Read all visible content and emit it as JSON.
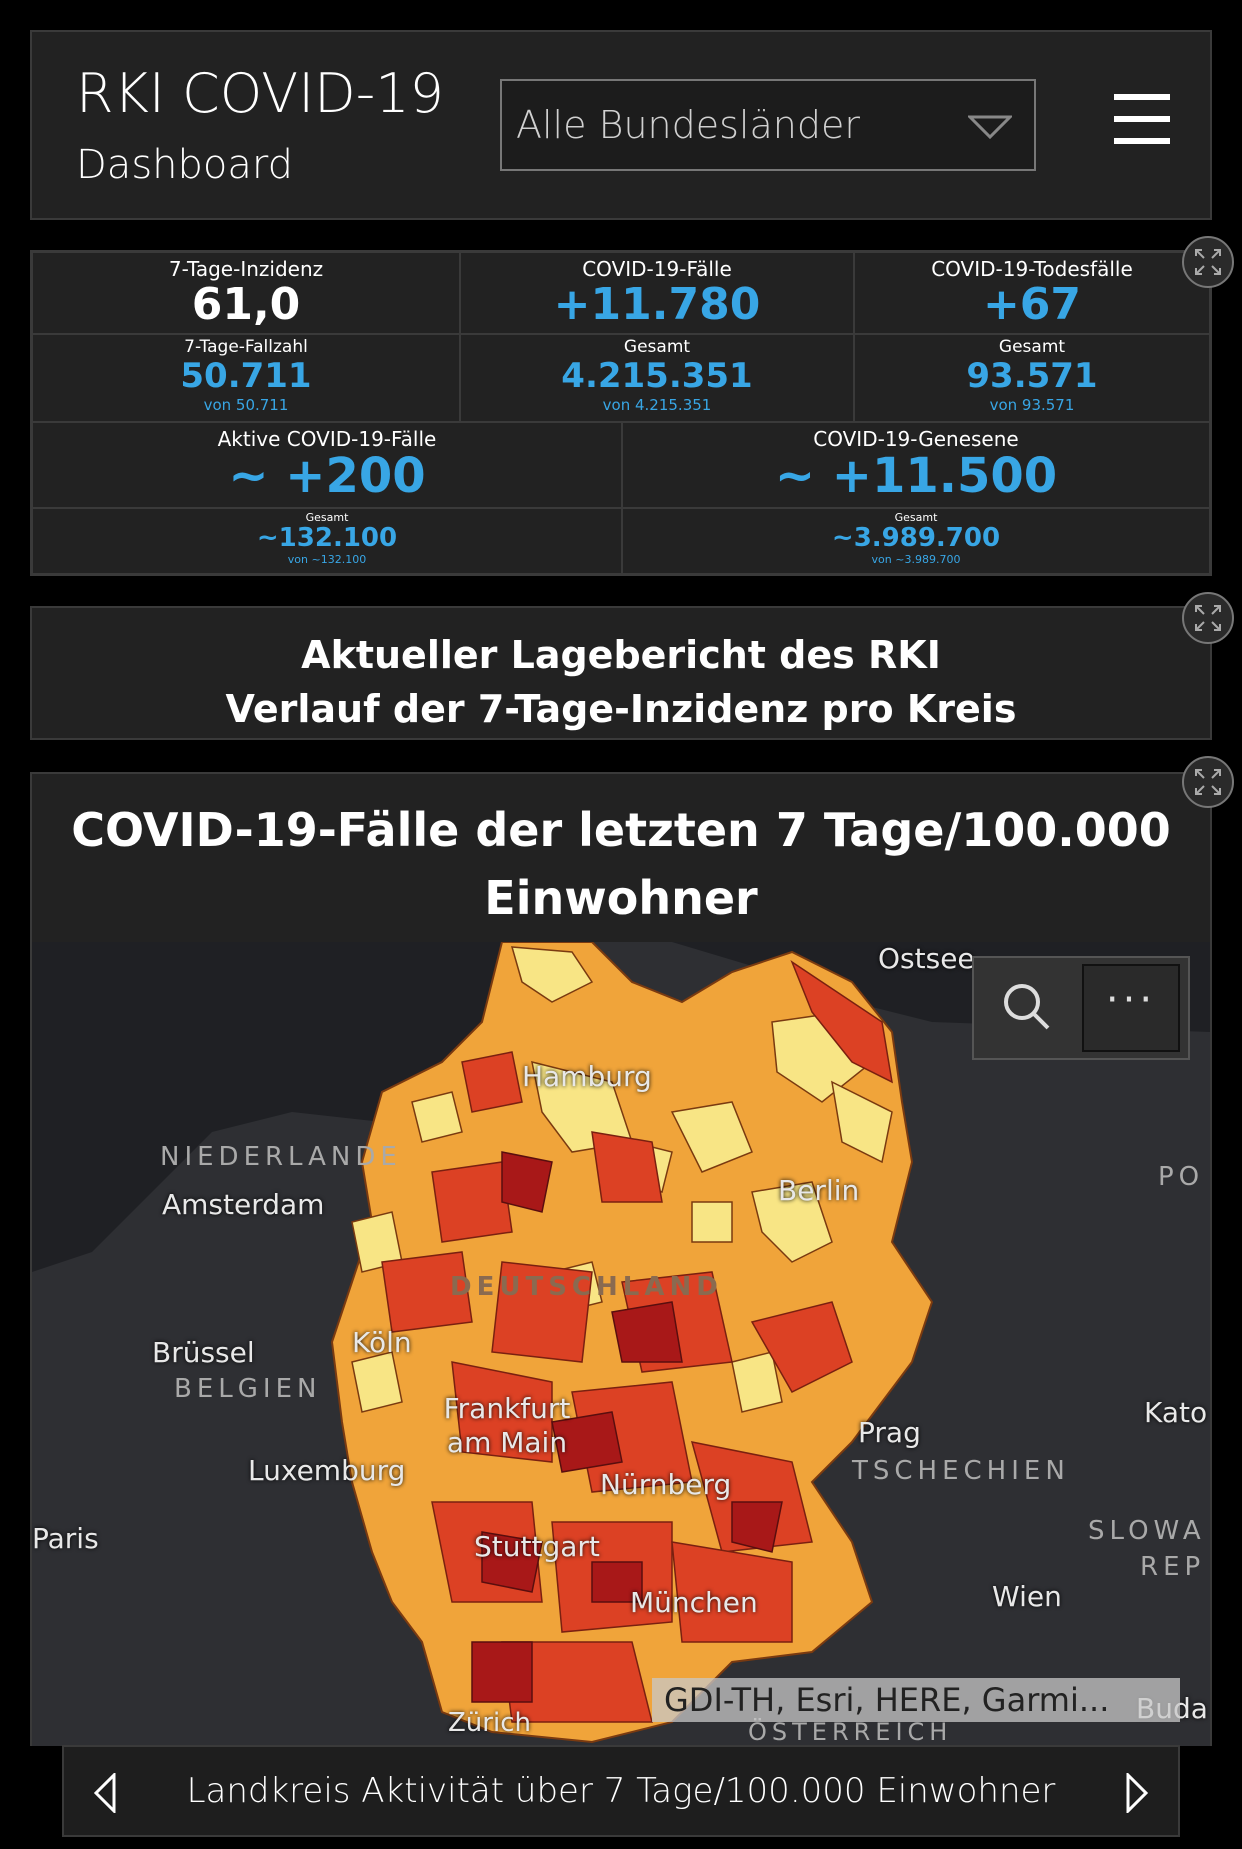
{
  "header": {
    "title": "RKI COVID-19",
    "subtitle": "Dashboard",
    "region_select": "Alle Bundesländer"
  },
  "stats": {
    "incidence": {
      "label": "7-Tage-Inzidenz",
      "value": "61,0"
    },
    "cases": {
      "label": "COVID-19-Fälle",
      "value": "+11.780"
    },
    "deaths": {
      "label": "COVID-19-Todesfälle",
      "value": "+67"
    },
    "case_count_7d": {
      "label": "7-Tage-Fallzahl",
      "value": "50.711",
      "sub": "von 50.711"
    },
    "cases_total": {
      "label": "Gesamt",
      "value": "4.215.351",
      "sub": "von 4.215.351"
    },
    "deaths_total": {
      "label": "Gesamt",
      "value": "93.571",
      "sub": "von 93.571"
    },
    "active": {
      "label": "Aktive COVID-19-Fälle",
      "value": "~ +200"
    },
    "recovered": {
      "label": "COVID-19-Genesene",
      "value": "~ +11.500"
    },
    "active_total": {
      "label": "Gesamt",
      "value": "~132.100",
      "sub": "von ~132.100"
    },
    "recovered_total": {
      "label": "Gesamt",
      "value": "~3.989.700",
      "sub": "von ~3.989.700"
    }
  },
  "report": {
    "line1": "Aktueller Lagebericht des RKI",
    "line2": "Verlauf der 7-Tage-Inzidenz pro Kreis"
  },
  "map": {
    "title": "COVID-19-Fälle der letzten 7 Tage/100.000 Einwohner",
    "cities": [
      "Hamburg",
      "Berlin",
      "Amsterdam",
      "Köln",
      "Brüssel",
      "Frankfurt am Main",
      "Luxemburg",
      "Nürnberg",
      "Prag",
      "Paris",
      "Stuttgart",
      "München",
      "Wien",
      "Zürich",
      "Kato",
      "Buda"
    ],
    "countries": [
      "NIEDERLANDE",
      "DEUTSCHLAND",
      "BELGIEN",
      "TSCHECHIEN",
      "SLOWA",
      "REP",
      "PO",
      "ÖSTERREICH",
      "Ostsee"
    ],
    "attribution": "GDI-TH, Esri, HERE, Garmi...",
    "colors": {
      "low": "#f8e585",
      "mid": "#f0a43a",
      "high": "#dc4124",
      "very_high": "#a81818"
    }
  },
  "bottom_nav": {
    "label": "Landkreis Aktivität über 7 Tage/100.000 Einwohner"
  }
}
